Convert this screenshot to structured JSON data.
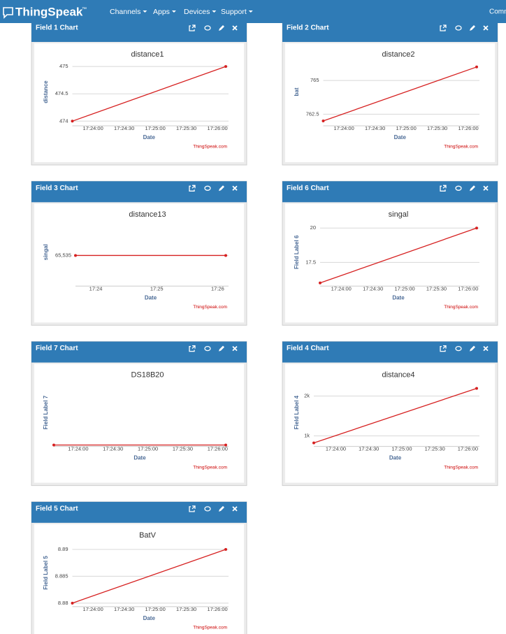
{
  "navbar": {
    "brand": "ThingSpeak",
    "trademark": "™",
    "menu": [
      "Channels",
      "Apps",
      "Devices",
      "Support"
    ],
    "right": "Comm"
  },
  "chart_data": [
    {
      "panel_title": "Field 1 Chart",
      "type": "line",
      "title": "distance1",
      "ylabel": "distance",
      "xlabel": "Date",
      "credit": "ThingSpeak.com",
      "x": [
        "17:23:40",
        "17:26:08"
      ],
      "values": [
        474,
        475
      ],
      "color": "#d62020",
      "xlim": [
        "17:23:40",
        "17:26:08"
      ],
      "xticks": [
        "17:24:00",
        "17:24:30",
        "17:25:00",
        "17:25:30",
        "17:26:00"
      ],
      "ylim": [
        473.94,
        475.13
      ],
      "yticks": [
        474,
        474.5,
        475
      ]
    },
    {
      "panel_title": "Field 2 Chart",
      "type": "line",
      "title": "distance2",
      "ylabel": "bat",
      "xlabel": "Date",
      "credit": "ThingSpeak.com",
      "x": [
        "17:23:40",
        "17:26:08"
      ],
      "values": [
        762,
        766
      ],
      "color": "#d62020",
      "xlim": [
        "17:23:40",
        "17:26:08"
      ],
      "xticks": [
        "17:24:00",
        "17:24:30",
        "17:25:00",
        "17:25:30",
        "17:26:00"
      ],
      "ylim": [
        761.74,
        766.56
      ],
      "yticks": [
        762.5,
        765
      ]
    },
    {
      "panel_title": "Field 3 Chart",
      "type": "line",
      "title": "distance13",
      "ylabel": "singal",
      "xlabel": "Date",
      "credit": "ThingSpeak.com",
      "x": [
        "17:23:40",
        "17:26:08"
      ],
      "values": [
        65535,
        65535
      ],
      "color": "#d62020",
      "xlim": [
        "17:23:40",
        "17:26:08"
      ],
      "xticks": [
        "17:24",
        "17:25",
        "17:26"
      ],
      "ylim": [
        65534.1,
        65536.1
      ],
      "yticks": [
        {
          "value": 65535,
          "label": "65,535"
        }
      ]
    },
    {
      "panel_title": "Field 6 Chart",
      "type": "line",
      "title": "singal",
      "ylabel": "Field Label 6",
      "xlabel": "Date",
      "credit": "ThingSpeak.com",
      "x": [
        "17:23:40",
        "17:26:08"
      ],
      "values": [
        16,
        20
      ],
      "color": "#d62020",
      "xlim": [
        "17:23:40",
        "17:26:08"
      ],
      "xticks": [
        "17:24:00",
        "17:24:30",
        "17:25:00",
        "17:25:30",
        "17:26:00"
      ],
      "ylim": [
        15.87,
        20.61
      ],
      "yticks": [
        17.5,
        20
      ]
    },
    {
      "panel_title": "Field 7 Chart",
      "type": "line",
      "title": "DS18B20",
      "ylabel": "Field Label 7",
      "xlabel": "Date",
      "credit": "ThingSpeak.com",
      "x": [
        "17:23:39",
        "17:26:07"
      ],
      "values": [
        0,
        0
      ],
      "color": "#d62020",
      "xlim": [
        "17:23:39",
        "17:26:07"
      ],
      "xticks": [
        "17:24:00",
        "17:24:30",
        "17:25:00",
        "17:25:30",
        "17:26:00"
      ],
      "ylim": [
        0,
        1
      ],
      "yticks": []
    },
    {
      "panel_title": "Field 4 Chart",
      "type": "line",
      "title": "distance4",
      "ylabel": "Field Label 4",
      "xlabel": "Date",
      "credit": "ThingSpeak.com",
      "x": [
        "17:23:40",
        "17:26:08"
      ],
      "values": [
        825,
        2193
      ],
      "color": "#d62020",
      "xlim": [
        "17:23:40",
        "17:26:08"
      ],
      "xticks": [
        "17:24:00",
        "17:24:30",
        "17:25:00",
        "17:25:30",
        "17:26:00"
      ],
      "ylim": [
        772,
        2404
      ],
      "yticks": [
        {
          "value": 1000,
          "label": "1k"
        },
        {
          "value": 2000,
          "label": "2k"
        }
      ]
    },
    {
      "panel_title": "Field 5 Chart",
      "type": "line",
      "title": "BatV",
      "ylabel": "Field Label 5",
      "xlabel": "Date",
      "credit": "ThingSpeak.com",
      "x": [
        "17:23:40",
        "17:26:08"
      ],
      "values": [
        8.88,
        8.89
      ],
      "color": "#d62020",
      "xlim": [
        "17:23:40",
        "17:26:08"
      ],
      "xticks": [
        "17:24:00",
        "17:24:30",
        "17:25:00",
        "17:25:30",
        "17:26:00"
      ],
      "ylim": [
        8.8796,
        8.8917
      ],
      "yticks": [
        8.88,
        8.885,
        8.89
      ]
    }
  ]
}
